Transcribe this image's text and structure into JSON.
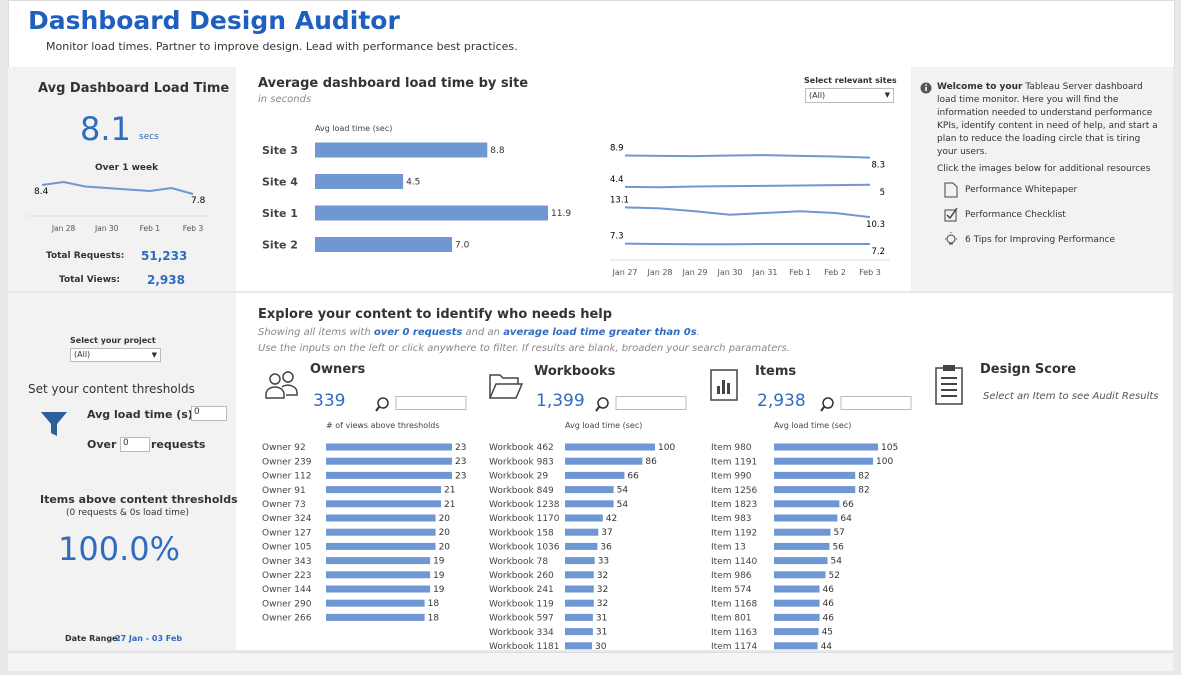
{
  "header": {
    "title": "Dashboard Design Auditor",
    "subtitle": "Monitor load times. Partner to improve design. Lead with performance best practices."
  },
  "kpi": {
    "title": "Avg Dashboard Load Time",
    "value": 8.1,
    "unit": "secs",
    "trend_title": "Over 1 week",
    "requests_label": "Total Requests:",
    "requests": "51,233",
    "views_label": "Total Views:",
    "views": "2,938"
  },
  "site_panel": {
    "title": "Average dashboard load time by site",
    "subtitle": "in seconds",
    "filter_label": "Select relevant sites",
    "filter_value": "(All)"
  },
  "info": {
    "welcome_bold": "Welcome to your",
    "welcome_text": " Tableau Server dashboard load time monitor. Here you will find the information needed to understand performance KPIs, identify content in need of help, and start a plan to reduce the loading circle that is tiring your users.",
    "resources_title": "Click the images below for additional resources",
    "links": [
      "Performance Whitepaper",
      "Performance Checklist",
      "6 Tips for Improving Performance"
    ]
  },
  "filters": {
    "project_label": "Select your project",
    "project_value": "(All)",
    "thresholds_title": "Set your content thresholds",
    "load_label": "Avg load time (s) >=",
    "load_value": "0",
    "over_label": "Over",
    "requests_value": "0",
    "requests_label": "requests",
    "above_title": "Items above content thresholds",
    "above_subtitle": "(0 requests & 0s load time)",
    "above_value": "100.0%",
    "date_label": "Date Range:",
    "date_value": "27 Jan - 03 Feb"
  },
  "explore": {
    "title": "Explore your content to identify who needs help",
    "line1": [
      "Showing all items with ",
      "over 0 requests",
      " and an ",
      "average load time greater than 0s",
      "."
    ],
    "line2": "Use the inputs on the left or click anywhere to filter. If results are blank, broaden your search paramaters.",
    "cards": [
      {
        "title": "Owners",
        "count": "339"
      },
      {
        "title": "Workbooks",
        "count": "1,399"
      },
      {
        "title": "Items",
        "count": "2,938"
      }
    ],
    "score_title": "Design Score",
    "score_hint": "Select an Item to see Audit Results"
  },
  "chart_data": [
    {
      "type": "line",
      "categories": [
        null,
        "Jan 28",
        null,
        "Jan 30",
        null,
        "Feb 1",
        null,
        "Feb 3"
      ],
      "values": [
        8.4,
        8.6,
        8.3,
        8.2,
        8.1,
        8.0,
        8.2,
        7.8
      ],
      "color": "#6f97d3"
    },
    {
      "type": "bar",
      "x_label": "Avg load time (sec)",
      "categories": [
        "Site 3",
        "Site 4",
        "Site 1",
        "Site 2"
      ],
      "values": [
        8.8,
        4.5,
        11.9,
        7.0
      ],
      "value_labels": [
        "8.8",
        "4.5",
        "11.9",
        "7.0"
      ],
      "color": "#6f97d3"
    },
    {
      "type": "line",
      "categories": [
        "Jan 27",
        "Jan 28",
        "Jan 29",
        "Jan 30",
        "Jan 31",
        "Feb 1",
        "Feb 2",
        "Feb 3"
      ],
      "series": [
        {
          "color": "#6f97d3",
          "values": [
            8.9,
            8.8,
            8.7,
            8.9,
            9.0,
            8.8,
            8.6,
            8.3
          ]
        },
        {
          "color": "#6f97d3",
          "values": [
            4.4,
            4.3,
            4.5,
            4.6,
            4.7,
            4.8,
            4.9,
            5.0
          ]
        },
        {
          "color": "#6f97d3",
          "values": [
            13.1,
            12.8,
            12.0,
            11.0,
            11.5,
            12.0,
            11.5,
            10.3
          ]
        },
        {
          "color": "#6f97d3",
          "values": [
            7.3,
            7.2,
            7.1,
            7.1,
            7.2,
            7.2,
            7.2,
            7.2
          ]
        }
      ]
    },
    {
      "type": "bar",
      "x_label": "# of views above thresholds",
      "categories": [
        "Owner 92",
        "Owner 239",
        "Owner 112",
        "Owner 91",
        "Owner 73",
        "Owner 324",
        "Owner 127",
        "Owner 105",
        "Owner 343",
        "Owner 223",
        "Owner 144",
        "Owner 290",
        "Owner 266"
      ],
      "values": [
        23,
        23,
        23,
        21,
        21,
        20,
        20,
        20,
        19,
        19,
        19,
        18,
        18
      ],
      "color": "#6f97d3"
    },
    {
      "type": "bar",
      "x_label": "Avg load time (sec)",
      "categories": [
        "Workbook 462",
        "Workbook 983",
        "Workbook 29",
        "Workbook 849",
        "Workbook 1238",
        "Workbook 1170",
        "Workbook 158",
        "Workbook 1036",
        "Workbook 78",
        "Workbook 260",
        "Workbook 241",
        "Workbook 119",
        "Workbook 597",
        "Workbook 334",
        "Workbook 1181"
      ],
      "values": [
        100,
        86,
        66,
        54,
        54,
        42,
        37,
        36,
        33,
        32,
        32,
        32,
        31,
        31,
        30
      ],
      "color": "#6f97d3"
    },
    {
      "type": "bar",
      "x_label": "Avg load time (sec)",
      "categories": [
        "Item 980",
        "Item 1191",
        "Item 990",
        "Item 1256",
        "Item 1823",
        "Item 983",
        "Item 1192",
        "Item 13",
        "Item 1140",
        "Item 986",
        "Item 574",
        "Item 1168",
        "Item 801",
        "Item 1163",
        "Item 1174"
      ],
      "values": [
        105,
        100,
        82,
        82,
        66,
        64,
        57,
        56,
        54,
        52,
        46,
        46,
        46,
        45,
        44
      ],
      "color": "#6f97d3"
    }
  ]
}
